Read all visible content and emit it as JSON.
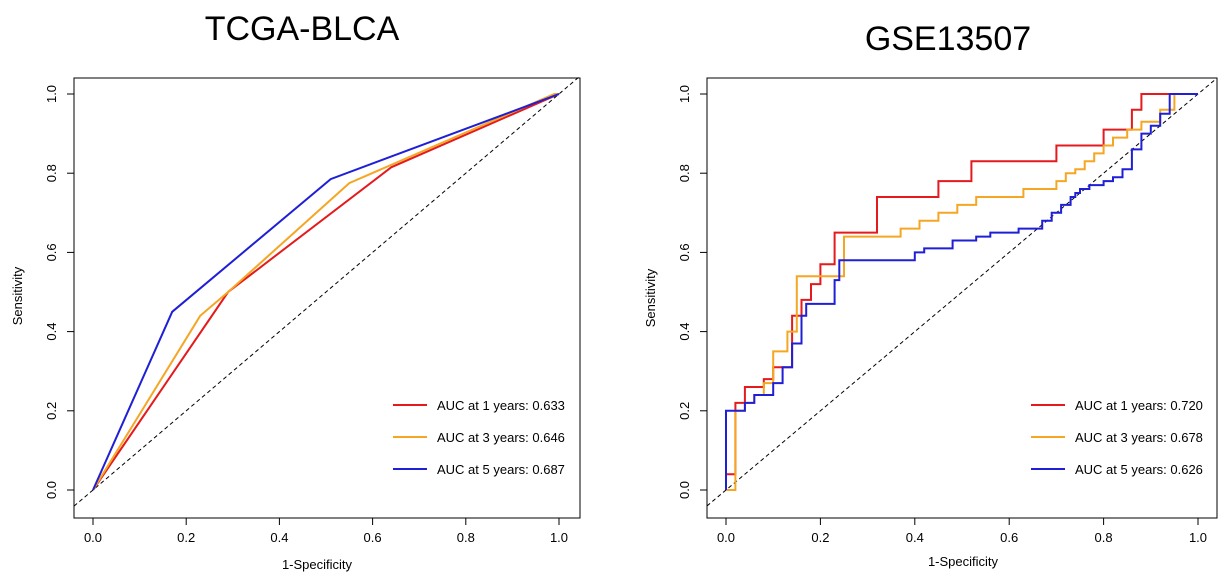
{
  "chart_data": [
    {
      "type": "line",
      "title": "TCGA-BLCA",
      "xlabel": "1-Specificity",
      "ylabel": "Sensitivity",
      "xlim": [
        0,
        1
      ],
      "ylim": [
        0,
        1
      ],
      "xticks": [
        "0.0",
        "0.2",
        "0.4",
        "0.6",
        "0.8",
        "1.0"
      ],
      "yticks": [
        "0.0",
        "0.2",
        "0.4",
        "0.6",
        "0.8",
        "1.0"
      ],
      "diagonal": true,
      "grid": false,
      "legend_position": "bottom-right",
      "series": [
        {
          "name": "AUC at 1 years: 0.633",
          "color": "#e41a1c",
          "x": [
            0,
            0.29,
            0.64,
            1.0
          ],
          "y": [
            0,
            0.5,
            0.815,
            1.0
          ]
        },
        {
          "name": "AUC at 3 years: 0.646",
          "color": "#f5a623",
          "x": [
            0,
            0.23,
            0.29,
            0.55,
            0.99,
            1.0
          ],
          "y": [
            0,
            0.44,
            0.5,
            0.775,
            1.0,
            1.0
          ]
        },
        {
          "name": "AUC at 5 years: 0.687",
          "color": "#1f1fd6",
          "x": [
            0,
            0.17,
            0.51,
            1.0
          ],
          "y": [
            0,
            0.45,
            0.785,
            1.0
          ]
        }
      ]
    },
    {
      "type": "line",
      "title": "GSE13507",
      "xlabel": "1-Specificity",
      "ylabel": "Sensitivity",
      "xlim": [
        0,
        1
      ],
      "ylim": [
        0,
        1
      ],
      "xticks": [
        "0.0",
        "0.2",
        "0.4",
        "0.6",
        "0.8",
        "1.0"
      ],
      "yticks": [
        "0.0",
        "0.2",
        "0.4",
        "0.6",
        "0.8",
        "1.0"
      ],
      "diagonal": true,
      "grid": false,
      "legend_position": "bottom-right",
      "series": [
        {
          "name": "AUC at 1 years: 0.720",
          "color": "#e41a1c",
          "x": [
            0.0,
            0.0,
            0.02,
            0.02,
            0.04,
            0.04,
            0.08,
            0.08,
            0.1,
            0.1,
            0.14,
            0.14,
            0.16,
            0.16,
            0.18,
            0.18,
            0.2,
            0.2,
            0.23,
            0.23,
            0.32,
            0.32,
            0.45,
            0.45,
            0.52,
            0.52,
            0.7,
            0.7,
            0.8,
            0.8,
            0.86,
            0.86,
            0.88,
            0.88,
            0.95
          ],
          "y": [
            0.0,
            0.04,
            0.04,
            0.22,
            0.22,
            0.26,
            0.26,
            0.28,
            0.28,
            0.31,
            0.31,
            0.44,
            0.44,
            0.48,
            0.48,
            0.52,
            0.52,
            0.57,
            0.57,
            0.65,
            0.65,
            0.74,
            0.74,
            0.78,
            0.78,
            0.83,
            0.83,
            0.87,
            0.87,
            0.91,
            0.91,
            0.96,
            0.96,
            1.0,
            1.0
          ]
        },
        {
          "name": "AUC at 3 years: 0.678",
          "color": "#f5a623",
          "x": [
            0.0,
            0.02,
            0.02,
            0.04,
            0.04,
            0.06,
            0.06,
            0.08,
            0.08,
            0.1,
            0.1,
            0.13,
            0.13,
            0.15,
            0.15,
            0.22,
            0.22,
            0.25,
            0.25,
            0.37,
            0.37,
            0.41,
            0.41,
            0.45,
            0.45,
            0.49,
            0.49,
            0.53,
            0.53,
            0.56,
            0.56,
            0.63,
            0.63,
            0.7,
            0.7,
            0.72,
            0.72,
            0.74,
            0.74,
            0.76,
            0.76,
            0.78,
            0.78,
            0.8,
            0.8,
            0.82,
            0.82,
            0.85,
            0.85,
            0.88,
            0.88,
            0.92,
            0.92,
            0.95,
            0.95
          ],
          "y": [
            0.0,
            0.0,
            0.2,
            0.2,
            0.22,
            0.22,
            0.24,
            0.24,
            0.27,
            0.27,
            0.35,
            0.35,
            0.4,
            0.4,
            0.54,
            0.54,
            0.54,
            0.54,
            0.64,
            0.64,
            0.66,
            0.66,
            0.68,
            0.68,
            0.7,
            0.7,
            0.72,
            0.72,
            0.74,
            0.74,
            0.74,
            0.74,
            0.76,
            0.76,
            0.78,
            0.78,
            0.8,
            0.8,
            0.81,
            0.81,
            0.83,
            0.83,
            0.85,
            0.85,
            0.87,
            0.87,
            0.89,
            0.89,
            0.91,
            0.91,
            0.93,
            0.93,
            0.96,
            0.96,
            1.0
          ]
        },
        {
          "name": "AUC at 5 years: 0.626",
          "color": "#1f1fd6",
          "x": [
            0.0,
            0.0,
            0.04,
            0.04,
            0.06,
            0.06,
            0.1,
            0.1,
            0.12,
            0.12,
            0.14,
            0.14,
            0.16,
            0.16,
            0.17,
            0.17,
            0.23,
            0.23,
            0.24,
            0.24,
            0.4,
            0.4,
            0.42,
            0.42,
            0.48,
            0.48,
            0.53,
            0.53,
            0.56,
            0.56,
            0.62,
            0.62,
            0.67,
            0.67,
            0.69,
            0.69,
            0.71,
            0.71,
            0.73,
            0.73,
            0.74,
            0.74,
            0.75,
            0.75,
            0.77,
            0.77,
            0.8,
            0.8,
            0.82,
            0.82,
            0.84,
            0.84,
            0.86,
            0.86,
            0.88,
            0.88,
            0.9,
            0.9,
            0.92,
            0.92,
            0.94,
            0.94,
            0.96,
            0.96,
            1.0
          ],
          "y": [
            0.0,
            0.2,
            0.2,
            0.22,
            0.22,
            0.24,
            0.24,
            0.27,
            0.27,
            0.31,
            0.31,
            0.37,
            0.37,
            0.44,
            0.44,
            0.47,
            0.47,
            0.53,
            0.53,
            0.58,
            0.58,
            0.6,
            0.6,
            0.61,
            0.61,
            0.63,
            0.63,
            0.64,
            0.64,
            0.65,
            0.65,
            0.66,
            0.66,
            0.68,
            0.68,
            0.7,
            0.7,
            0.72,
            0.72,
            0.74,
            0.74,
            0.75,
            0.75,
            0.76,
            0.76,
            0.77,
            0.77,
            0.78,
            0.78,
            0.79,
            0.79,
            0.81,
            0.81,
            0.86,
            0.86,
            0.9,
            0.9,
            0.92,
            0.92,
            0.95,
            0.95,
            1.0,
            1.0,
            1.0,
            1.0
          ]
        }
      ]
    }
  ]
}
